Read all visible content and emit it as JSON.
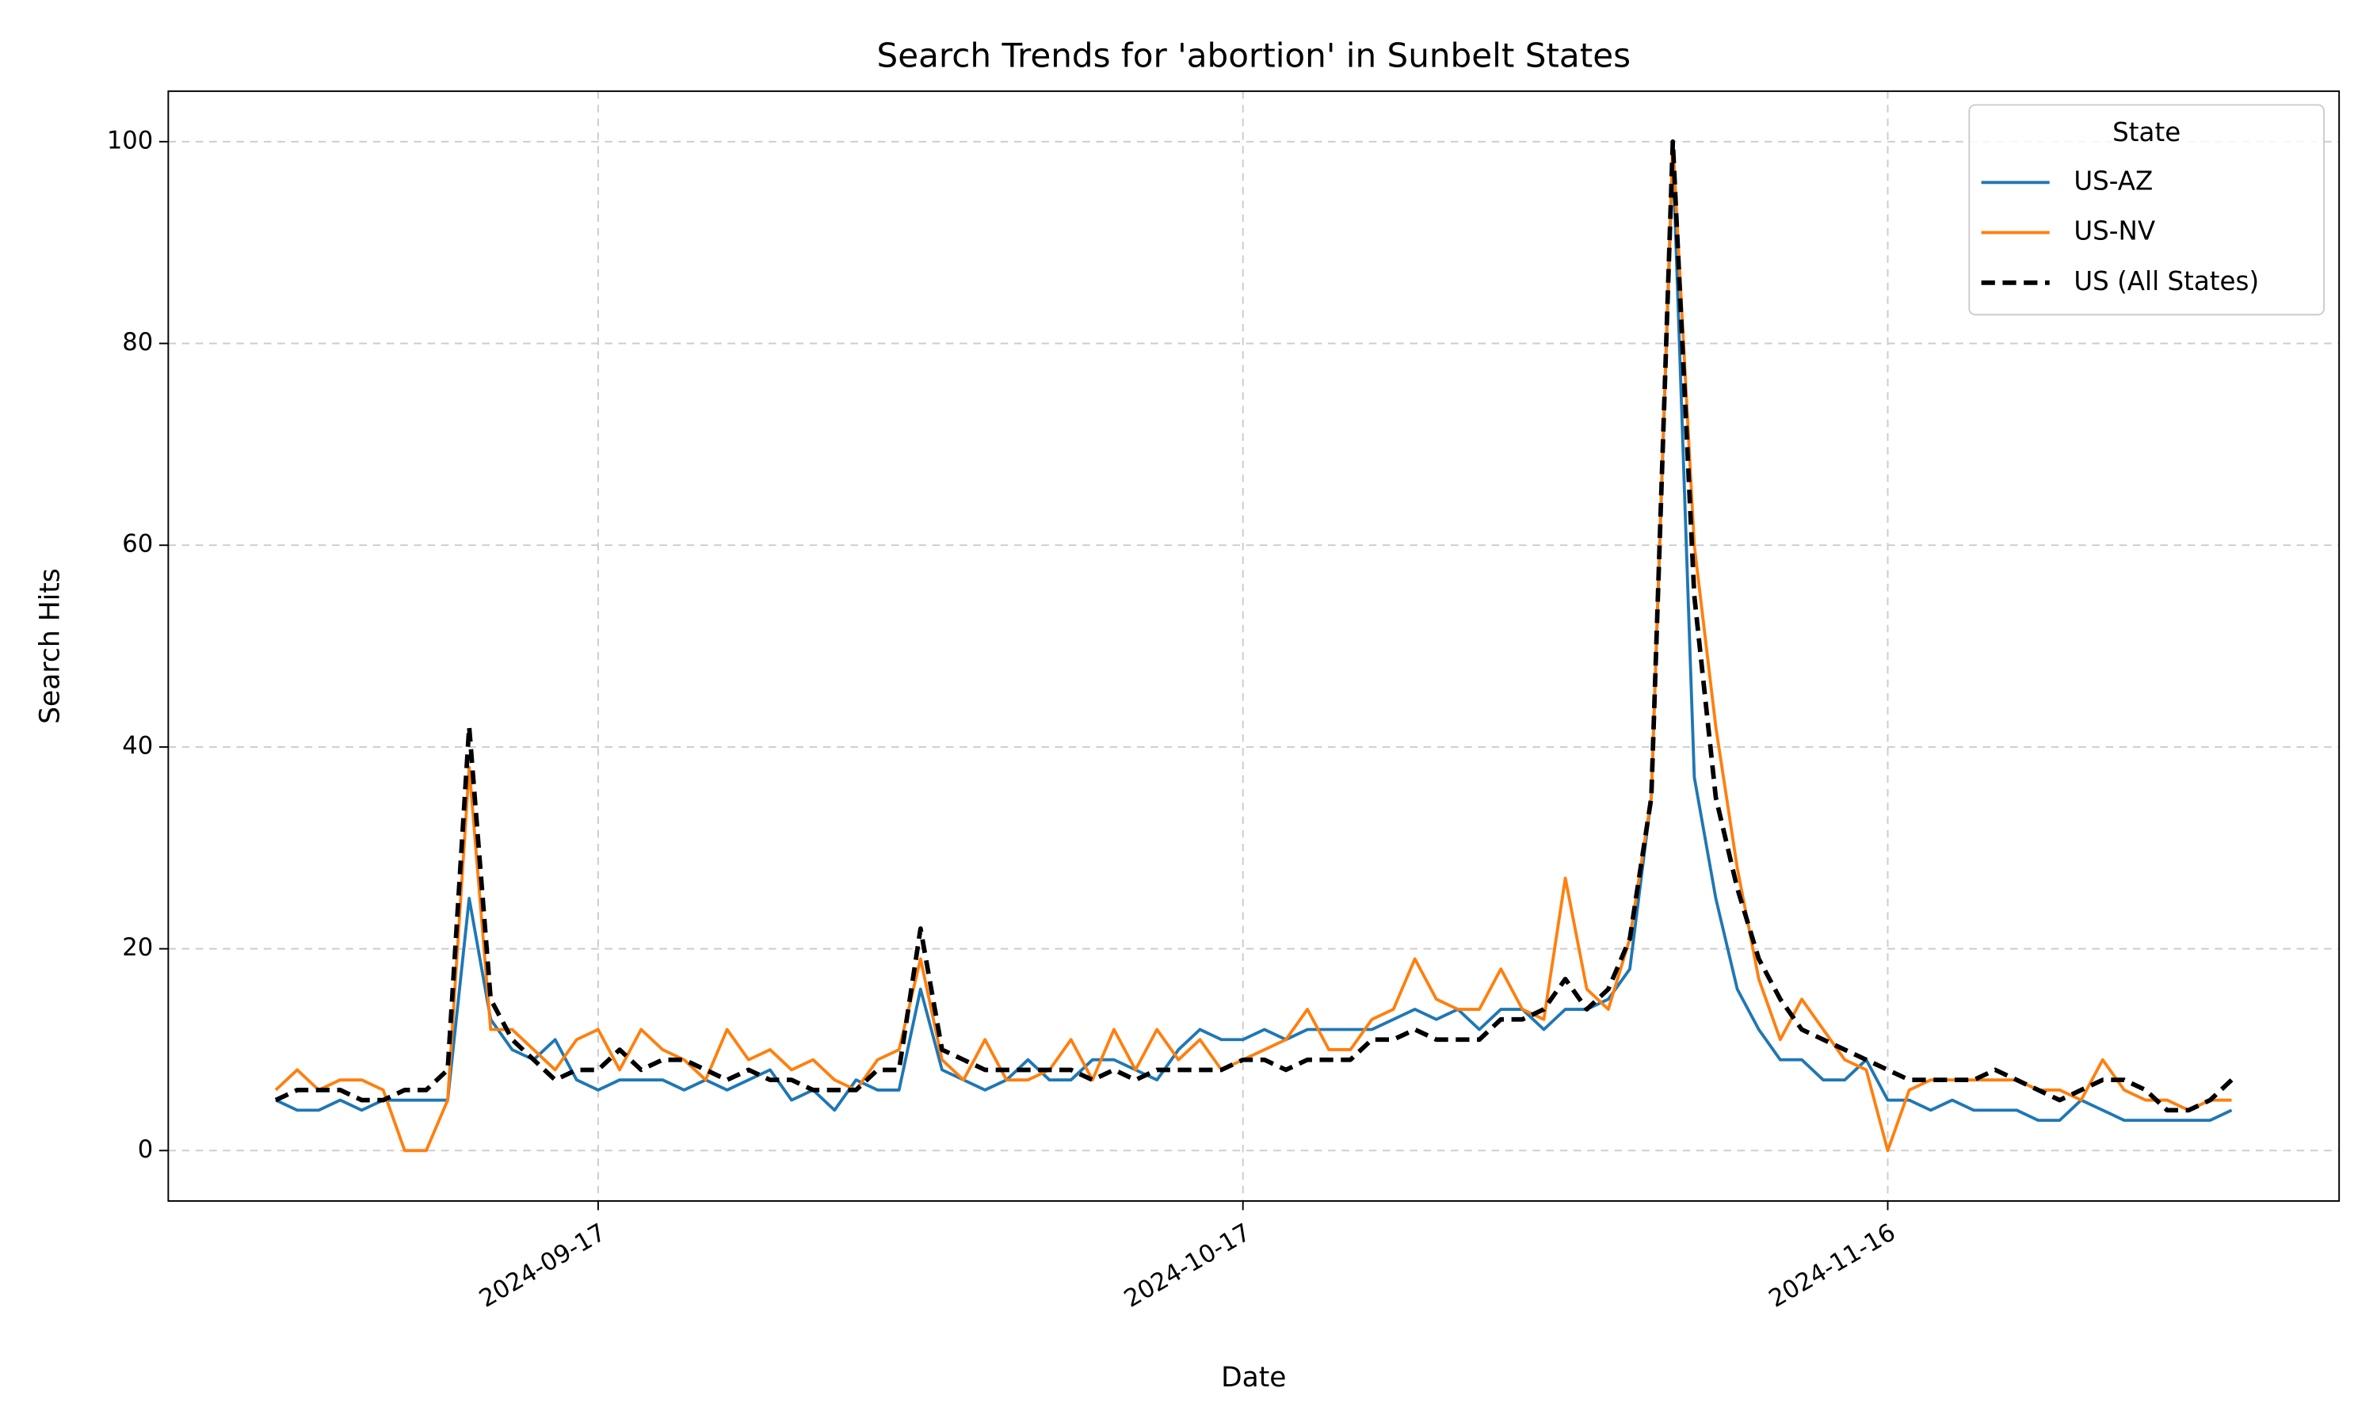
{
  "chart_data": {
    "type": "line",
    "title": "Search Trends for 'abortion' in Sunbelt States",
    "xlabel": "Date",
    "ylabel": "Search Hits",
    "x": [
      "2024-09-02",
      "2024-09-03",
      "2024-09-04",
      "2024-09-05",
      "2024-09-06",
      "2024-09-07",
      "2024-09-08",
      "2024-09-09",
      "2024-09-10",
      "2024-09-11",
      "2024-09-12",
      "2024-09-13",
      "2024-09-14",
      "2024-09-15",
      "2024-09-16",
      "2024-09-17",
      "2024-09-18",
      "2024-09-19",
      "2024-09-20",
      "2024-09-21",
      "2024-09-22",
      "2024-09-23",
      "2024-09-24",
      "2024-09-25",
      "2024-09-26",
      "2024-09-27",
      "2024-09-28",
      "2024-09-29",
      "2024-09-30",
      "2024-10-01",
      "2024-10-02",
      "2024-10-03",
      "2024-10-04",
      "2024-10-05",
      "2024-10-06",
      "2024-10-07",
      "2024-10-08",
      "2024-10-09",
      "2024-10-10",
      "2024-10-11",
      "2024-10-12",
      "2024-10-13",
      "2024-10-14",
      "2024-10-15",
      "2024-10-16",
      "2024-10-17",
      "2024-10-18",
      "2024-10-19",
      "2024-10-20",
      "2024-10-21",
      "2024-10-22",
      "2024-10-23",
      "2024-10-24",
      "2024-10-25",
      "2024-10-26",
      "2024-10-27",
      "2024-10-28",
      "2024-10-29",
      "2024-10-30",
      "2024-10-31",
      "2024-11-01",
      "2024-11-02",
      "2024-11-03",
      "2024-11-04",
      "2024-11-05",
      "2024-11-06",
      "2024-11-07",
      "2024-11-08",
      "2024-11-09",
      "2024-11-10",
      "2024-11-11",
      "2024-11-12",
      "2024-11-13",
      "2024-11-14",
      "2024-11-15",
      "2024-11-16",
      "2024-11-17",
      "2024-11-18",
      "2024-11-19",
      "2024-11-20",
      "2024-11-21",
      "2024-11-22",
      "2024-11-23",
      "2024-11-24",
      "2024-11-25",
      "2024-11-26",
      "2024-11-27",
      "2024-11-28",
      "2024-11-29",
      "2024-11-30",
      "2024-12-01",
      "2024-12-02"
    ],
    "series": [
      {
        "name": "US-AZ",
        "color": "#1f77b4",
        "linestyle": "solid",
        "values": [
          5,
          4,
          4,
          5,
          4,
          5,
          5,
          5,
          5,
          25,
          13,
          10,
          9,
          11,
          7,
          6,
          7,
          7,
          7,
          6,
          7,
          6,
          7,
          8,
          5,
          6,
          4,
          7,
          6,
          6,
          16,
          8,
          7,
          6,
          7,
          9,
          7,
          7,
          9,
          9,
          8,
          7,
          10,
          12,
          11,
          11,
          12,
          11,
          12,
          12,
          12,
          12,
          13,
          14,
          13,
          14,
          12,
          14,
          14,
          12,
          14,
          14,
          15,
          18,
          35,
          99,
          37,
          25,
          16,
          12,
          9,
          9,
          7,
          7,
          9,
          5,
          5,
          4,
          5,
          4,
          4,
          4,
          3,
          3,
          5,
          4,
          3,
          3,
          3,
          3,
          3,
          4
        ]
      },
      {
        "name": "US-NV",
        "color": "#ff7f0e",
        "linestyle": "solid",
        "values": [
          6,
          8,
          6,
          7,
          7,
          6,
          0,
          0,
          5,
          38,
          12,
          12,
          10,
          8,
          11,
          12,
          8,
          12,
          10,
          9,
          7,
          12,
          9,
          10,
          8,
          9,
          7,
          6,
          9,
          10,
          19,
          9,
          7,
          11,
          7,
          7,
          8,
          11,
          7,
          12,
          8,
          12,
          9,
          11,
          8,
          9,
          10,
          11,
          14,
          10,
          10,
          13,
          14,
          19,
          15,
          14,
          14,
          18,
          14,
          13,
          27,
          16,
          14,
          21,
          35,
          100,
          60,
          42,
          28,
          17,
          11,
          15,
          12,
          9,
          8,
          0,
          6,
          7,
          7,
          7,
          7,
          7,
          6,
          6,
          5,
          9,
          6,
          5,
          5,
          4,
          5,
          5
        ]
      },
      {
        "name": "US (All States)",
        "color": "#000000",
        "linestyle": "dashed",
        "values": [
          5,
          6,
          6,
          6,
          5,
          5,
          6,
          6,
          8,
          42,
          15,
          11,
          9,
          7,
          8,
          8,
          10,
          8,
          9,
          9,
          8,
          7,
          8,
          7,
          7,
          6,
          6,
          6,
          8,
          8,
          22,
          10,
          9,
          8,
          8,
          8,
          8,
          8,
          7,
          8,
          7,
          8,
          8,
          8,
          8,
          9,
          9,
          8,
          9,
          9,
          9,
          11,
          11,
          12,
          11,
          11,
          11,
          13,
          13,
          14,
          17,
          14,
          16,
          21,
          35,
          100,
          55,
          35,
          26,
          19,
          15,
          12,
          11,
          10,
          9,
          8,
          7,
          7,
          7,
          7,
          8,
          7,
          6,
          5,
          6,
          7,
          7,
          6,
          4,
          4,
          5,
          7
        ]
      }
    ],
    "xlim": [
      "2024-08-28",
      "2024-12-07"
    ],
    "xticks": [
      "2024-09-17",
      "2024-10-17",
      "2024-11-16"
    ],
    "ylim": [
      -5,
      105
    ],
    "yticks": [
      0,
      20,
      40,
      60,
      80,
      100
    ],
    "grid": true,
    "legend": {
      "title": "State",
      "loc": "upper right"
    }
  }
}
